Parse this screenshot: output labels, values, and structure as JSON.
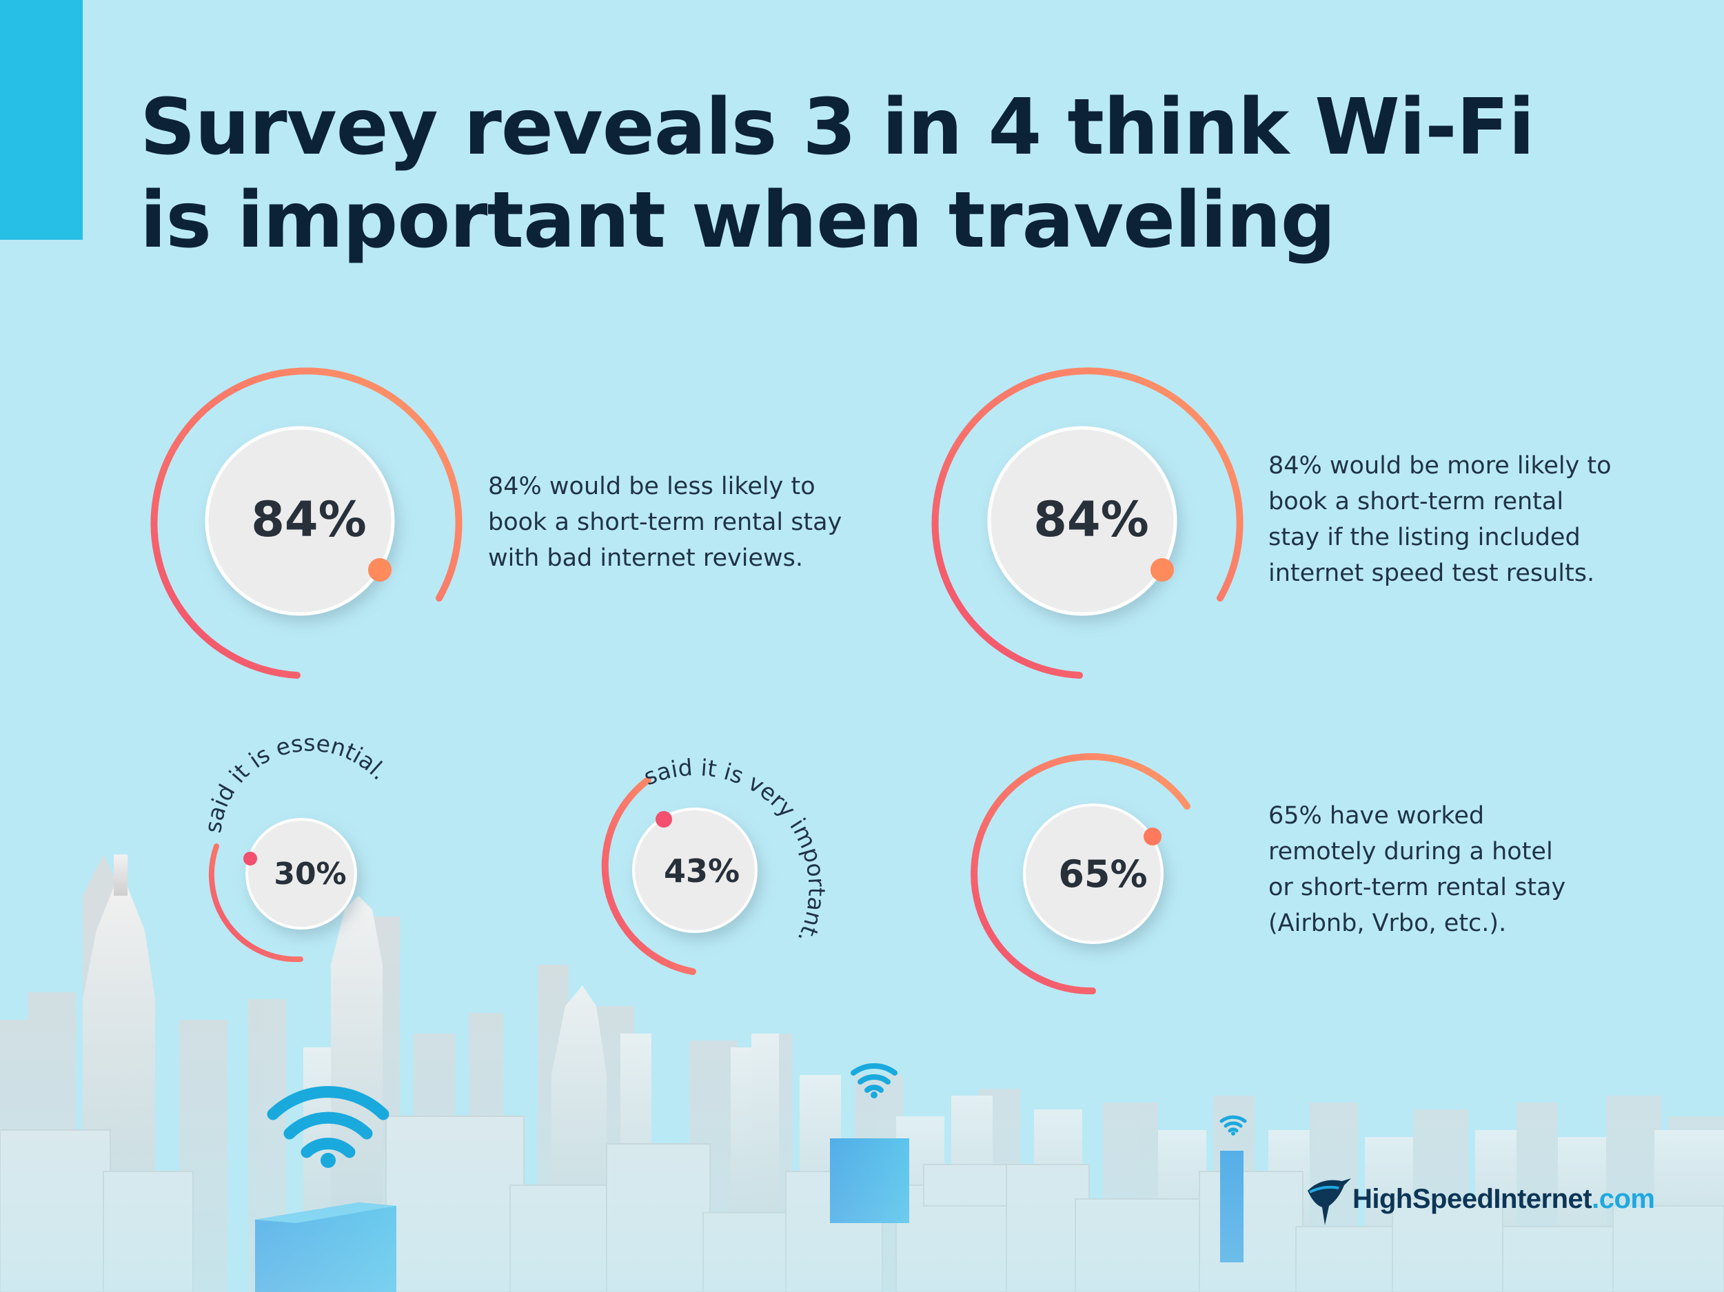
{
  "header": {
    "title_line1": "Survey reveals 3 in 4 think Wi-Fi",
    "title_line2": "is important when traveling"
  },
  "stats": [
    {
      "value": "84%",
      "fraction": 0.84,
      "description_lines": [
        "84% would be less likely to",
        "book a short-term rental stay",
        "with bad internet reviews."
      ]
    },
    {
      "value": "84%",
      "fraction": 0.84,
      "description_lines": [
        "84% would be more likely to",
        "book a short-term rental",
        "stay if the listing included",
        "internet speed test results."
      ]
    },
    {
      "value": "30%",
      "fraction": 0.3,
      "arc_label": "said it is essential."
    },
    {
      "value": "43%",
      "fraction": 0.43,
      "arc_label": "said it is very important."
    },
    {
      "value": "65%",
      "fraction": 0.65,
      "description_lines": [
        "65% have worked",
        "remotely during a hotel",
        "or short-term rental stay",
        "(Airbnb, Vrbo, etc.)."
      ]
    }
  ],
  "colors": {
    "background": "#b9e9f5",
    "accent_bar": "#27bfe6",
    "title": "#0c2236",
    "gauge_start": "#f2506e",
    "gauge_end": "#ff9966",
    "wifi": "#1aa9dd",
    "highlight_building": "#1f8fe0"
  },
  "icons": [
    "wifi-icon",
    "bird-logo-icon"
  ],
  "logo": {
    "name": "HighSpeedInternet",
    "tld": ".com"
  }
}
